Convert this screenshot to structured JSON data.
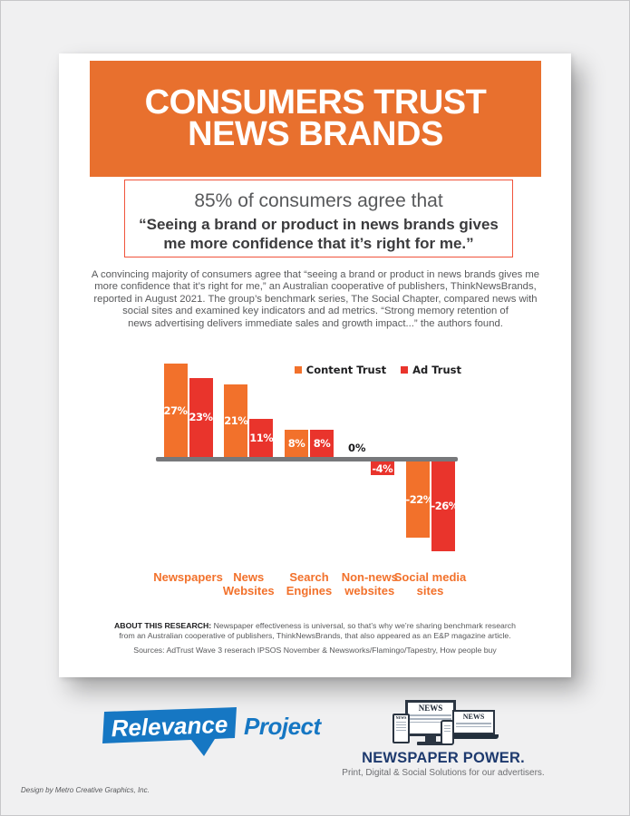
{
  "header": {
    "title_lines": [
      "CONSUMERS TRUST",
      "NEWS BRANDS"
    ]
  },
  "quote_box": {
    "lead": "85% of consumers agree that",
    "quote_lines": [
      "“Seeing a brand or product in news brands gives",
      "me more confidence that it’s right for me.”"
    ]
  },
  "intro_lines": [
    "A convincing majority of consumers agree that “seeing a brand or product in news brands gives me",
    "more confidence that it’s right for me,” an Australian cooperative of publishers, ThinkNewsBrands,",
    "reported in August 2021. The group’s benchmark series, The Social Chapter, compared news with",
    "social sites and examined key indicators and ad metrics. “Strong memory retention of",
    "news advertising delivers immediate sales and growth impact...” the authors found."
  ],
  "chart_data": {
    "type": "bar",
    "title": "",
    "unit": "%",
    "categories": [
      "Newspapers",
      "News Websites",
      "Search Engines",
      "Non-news websites",
      "Social media sites"
    ],
    "category_label_lines": [
      "Newspapers",
      "News\nWebsites",
      "Search\nEngines",
      "Non-news\nwebsites",
      "Social media\nsites"
    ],
    "series": [
      {
        "name": "Content Trust",
        "color": "#F2712B",
        "values": [
          27,
          21,
          8,
          0,
          -22
        ]
      },
      {
        "name": "Ad Trust",
        "color": "#E9342C",
        "values": [
          23,
          11,
          8,
          -4,
          -26
        ]
      }
    ],
    "value_labels": [
      [
        "27%",
        "21%",
        "8%",
        "0%",
        "-22%"
      ],
      [
        "23%",
        "11%",
        "8%",
        "-4%",
        "-26%"
      ]
    ],
    "baseline": 0,
    "ylim": [
      -30,
      30
    ],
    "grid": false,
    "legend_position": "top-right",
    "axis_color": "#77787B"
  },
  "about": {
    "label": "ABOUT THIS RESEARCH:",
    "text": " Newspaper effectiveness is universal, so that’s why we’re sharing benchmark research from an Australian cooperative of publishers, ThinkNewsBrands, that also appeared as an E&P magazine article.",
    "sources": "Sources: AdTrust Wave 3 reserach IPSOS November & Newsworks/Flamingo/Tapestry, How people buy"
  },
  "logos": {
    "relevance": {
      "word1": "Relevance",
      "word2": "Project",
      "blue": "#1677C3"
    },
    "newspaper_power": {
      "title": "NEWSPAPER POWER.",
      "subtitle": "Print, Digital & Social Solutions for our advertisers.",
      "device_label": "NEWS",
      "navy": "#1E3A6E"
    }
  },
  "footer": {
    "design_credit": "Design by Metro Creative Graphics, Inc."
  },
  "colors": {
    "banner_orange": "#E8702E",
    "bar_orange": "#F2712B",
    "bar_red": "#E9342C",
    "quote_border": "#F0543C",
    "axis_gray": "#77787B",
    "body_gray": "#58595B",
    "relevance_blue": "#1677C3",
    "newspaper_navy": "#1E3A6E",
    "page_background": "#F0F0F1"
  }
}
